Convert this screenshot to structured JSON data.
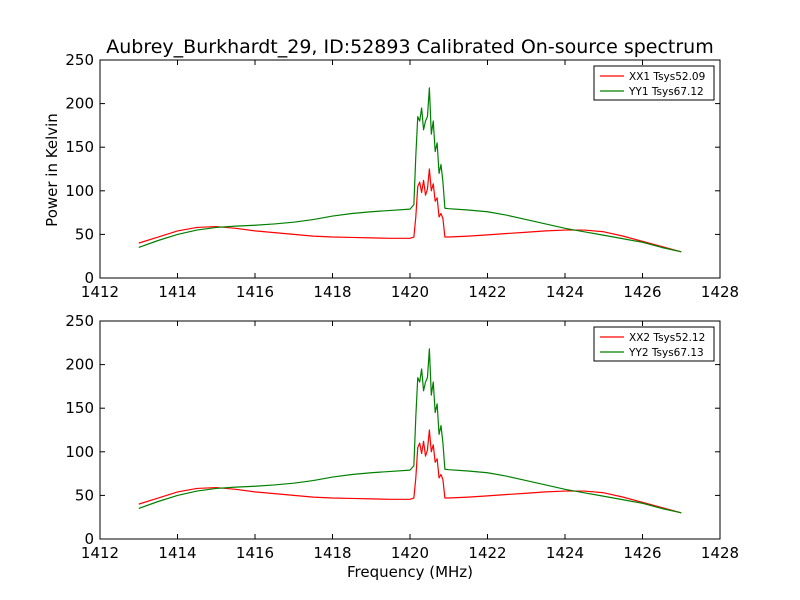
{
  "figure": {
    "title": "Aubrey_Burkhardt_29, ID:52893 Calibrated On-source spectrum",
    "xlabel": "Frequency (MHz)",
    "ylabel": "Power in Kelvin"
  },
  "colors": {
    "xx": "#ff0000",
    "yy": "#008000",
    "axes": "#000000",
    "background": "#ffffff"
  },
  "chart_data": [
    {
      "type": "line",
      "xlabel": "",
      "ylabel": "Power in Kelvin",
      "xlim": [
        1412,
        1428
      ],
      "ylim": [
        0,
        250
      ],
      "xticks": [
        1412,
        1414,
        1416,
        1418,
        1420,
        1422,
        1424,
        1426,
        1428
      ],
      "yticks": [
        0,
        50,
        100,
        150,
        200,
        250
      ],
      "grid": false,
      "legend": "top-right",
      "series": [
        {
          "name": "XX1 Tsys52.09",
          "color": "#ff0000",
          "x": [
            1413.0,
            1413.5,
            1414.0,
            1414.5,
            1415.0,
            1415.5,
            1416.0,
            1416.5,
            1417.0,
            1417.5,
            1418.0,
            1418.5,
            1419.0,
            1419.5,
            1420.0,
            1420.1,
            1420.15,
            1420.2,
            1420.25,
            1420.3,
            1420.35,
            1420.4,
            1420.45,
            1420.5,
            1420.55,
            1420.6,
            1420.65,
            1420.7,
            1420.75,
            1420.8,
            1420.85,
            1420.9,
            1421.0,
            1421.5,
            1422.0,
            1422.5,
            1423.0,
            1423.5,
            1424.0,
            1424.5,
            1425.0,
            1425.5,
            1426.0,
            1426.5,
            1427.0
          ],
          "y": [
            40,
            47,
            54,
            58,
            59,
            57,
            54,
            52,
            50,
            48,
            47,
            46.5,
            46,
            45.5,
            45.5,
            47,
            70,
            105,
            110,
            98,
            112,
            95,
            102,
            125,
            100,
            108,
            88,
            92,
            70,
            74,
            68,
            47,
            47,
            48,
            49.5,
            51,
            52.5,
            54,
            55,
            55,
            53,
            48,
            42,
            36,
            30
          ]
        },
        {
          "name": "YY1 Tsys67.12",
          "color": "#008000",
          "x": [
            1413.0,
            1413.5,
            1414.0,
            1414.5,
            1415.0,
            1415.5,
            1416.0,
            1416.5,
            1417.0,
            1417.5,
            1418.0,
            1418.5,
            1419.0,
            1419.5,
            1420.0,
            1420.1,
            1420.15,
            1420.2,
            1420.25,
            1420.3,
            1420.35,
            1420.4,
            1420.45,
            1420.5,
            1420.55,
            1420.6,
            1420.65,
            1420.7,
            1420.75,
            1420.8,
            1420.85,
            1420.9,
            1421.0,
            1421.5,
            1422.0,
            1422.5,
            1423.0,
            1423.5,
            1424.0,
            1424.5,
            1425.0,
            1425.5,
            1426.0,
            1426.5,
            1427.0
          ],
          "y": [
            35,
            43,
            50,
            55,
            58,
            59.5,
            60.5,
            62,
            64,
            67,
            71,
            74,
            76,
            77.5,
            79,
            84,
            140,
            185,
            180,
            195,
            170,
            180,
            185,
            218,
            165,
            180,
            145,
            155,
            120,
            130,
            110,
            80,
            79.5,
            78,
            76,
            72,
            67,
            62,
            57,
            53,
            49,
            45,
            41,
            35,
            30
          ]
        }
      ]
    },
    {
      "type": "line",
      "xlabel": "Frequency (MHz)",
      "ylabel": "",
      "xlim": [
        1412,
        1428
      ],
      "ylim": [
        0,
        250
      ],
      "xticks": [
        1412,
        1414,
        1416,
        1418,
        1420,
        1422,
        1424,
        1426,
        1428
      ],
      "yticks": [
        0,
        50,
        100,
        150,
        200,
        250
      ],
      "grid": false,
      "legend": "top-right",
      "series": [
        {
          "name": "XX2 Tsys52.12",
          "color": "#ff0000",
          "x": [
            1413.0,
            1413.5,
            1414.0,
            1414.5,
            1415.0,
            1415.5,
            1416.0,
            1416.5,
            1417.0,
            1417.5,
            1418.0,
            1418.5,
            1419.0,
            1419.5,
            1420.0,
            1420.1,
            1420.15,
            1420.2,
            1420.25,
            1420.3,
            1420.35,
            1420.4,
            1420.45,
            1420.5,
            1420.55,
            1420.6,
            1420.65,
            1420.7,
            1420.75,
            1420.8,
            1420.85,
            1420.9,
            1421.0,
            1421.5,
            1422.0,
            1422.5,
            1423.0,
            1423.5,
            1424.0,
            1424.5,
            1425.0,
            1425.5,
            1426.0,
            1426.5,
            1427.0
          ],
          "y": [
            40,
            47,
            54,
            58,
            59,
            57,
            54,
            52,
            50,
            48,
            47,
            46.5,
            46,
            45.5,
            45.5,
            47,
            70,
            105,
            110,
            98,
            112,
            95,
            102,
            125,
            100,
            108,
            88,
            92,
            70,
            74,
            68,
            47,
            47,
            48,
            49.5,
            51,
            52.5,
            54,
            55,
            55,
            53,
            48,
            42,
            36,
            30
          ]
        },
        {
          "name": "YY2 Tsys67.13",
          "color": "#008000",
          "x": [
            1413.0,
            1413.5,
            1414.0,
            1414.5,
            1415.0,
            1415.5,
            1416.0,
            1416.5,
            1417.0,
            1417.5,
            1418.0,
            1418.5,
            1419.0,
            1419.5,
            1420.0,
            1420.1,
            1420.15,
            1420.2,
            1420.25,
            1420.3,
            1420.35,
            1420.4,
            1420.45,
            1420.5,
            1420.55,
            1420.6,
            1420.65,
            1420.7,
            1420.75,
            1420.8,
            1420.85,
            1420.9,
            1421.0,
            1421.5,
            1422.0,
            1422.5,
            1423.0,
            1423.5,
            1424.0,
            1424.5,
            1425.0,
            1425.5,
            1426.0,
            1426.5,
            1427.0
          ],
          "y": [
            35,
            43,
            50,
            55,
            58,
            59.5,
            60.5,
            62,
            64,
            67,
            71,
            74,
            76,
            77.5,
            79,
            84,
            140,
            185,
            180,
            195,
            170,
            180,
            185,
            218,
            165,
            180,
            145,
            155,
            120,
            130,
            110,
            80,
            79.5,
            78,
            76,
            72,
            67,
            62,
            57,
            53,
            49,
            45,
            41,
            35,
            30
          ]
        }
      ]
    }
  ]
}
